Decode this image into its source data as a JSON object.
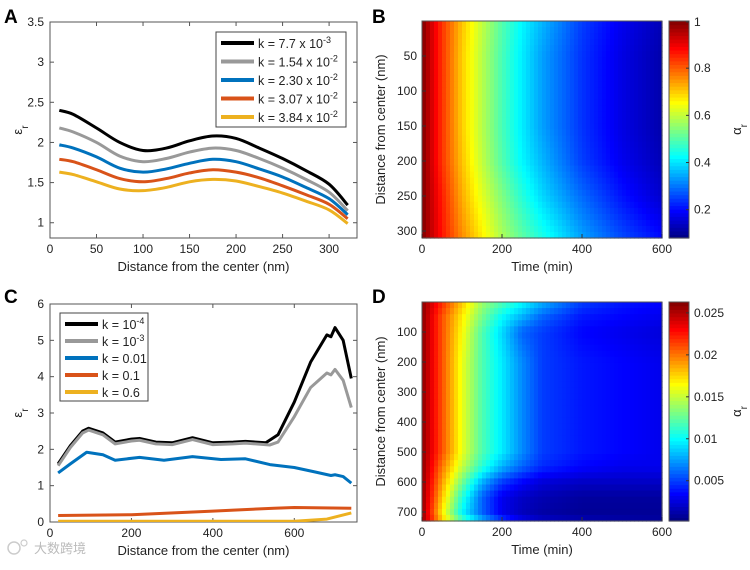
{
  "watermark": "大数跨境",
  "chart_data": [
    {
      "panel": "A",
      "type": "line",
      "xlabel": "Distance from the center (nm)",
      "ylabel": "ε",
      "ylabel_sub": "r",
      "xlim": [
        0,
        330
      ],
      "ylim": [
        0.81,
        3.5
      ],
      "xticks": [
        0,
        50,
        100,
        150,
        200,
        250,
        300
      ],
      "yticks": [
        1,
        1.5,
        2,
        2.5,
        3,
        3.5
      ],
      "legend_position": "top-right",
      "x": [
        10,
        25,
        50,
        75,
        100,
        125,
        150,
        175,
        200,
        225,
        250,
        275,
        300,
        320
      ],
      "series": [
        {
          "name": "k = 7.7 x 10",
          "exp": "-3",
          "color": "#000000",
          "values": [
            2.4,
            2.35,
            2.18,
            2.0,
            1.9,
            1.93,
            2.02,
            2.08,
            2.05,
            1.93,
            1.8,
            1.65,
            1.48,
            1.22
          ]
        },
        {
          "name": "k = 1.54 x 10",
          "exp": "-2",
          "color": "#999999",
          "values": [
            2.18,
            2.13,
            2.0,
            1.83,
            1.76,
            1.8,
            1.88,
            1.93,
            1.9,
            1.8,
            1.68,
            1.54,
            1.38,
            1.15
          ]
        },
        {
          "name": "k = 2.30 x 10",
          "exp": "-2",
          "color": "#0072BD",
          "values": [
            1.97,
            1.93,
            1.82,
            1.68,
            1.63,
            1.67,
            1.74,
            1.79,
            1.76,
            1.67,
            1.57,
            1.44,
            1.3,
            1.1
          ]
        },
        {
          "name": "k = 3.07 x 10",
          "exp": "-2",
          "color": "#D95319",
          "values": [
            1.79,
            1.76,
            1.66,
            1.55,
            1.51,
            1.55,
            1.62,
            1.66,
            1.63,
            1.56,
            1.46,
            1.35,
            1.23,
            1.05
          ]
        },
        {
          "name": "k = 3.84 x 10",
          "exp": "-2",
          "color": "#EDB120",
          "values": [
            1.63,
            1.6,
            1.51,
            1.42,
            1.4,
            1.44,
            1.51,
            1.54,
            1.52,
            1.45,
            1.37,
            1.27,
            1.16,
            0.99
          ]
        }
      ]
    },
    {
      "panel": "B",
      "type": "heatmap",
      "xlabel": "Time (min)",
      "ylabel": "Distance from center (nm)",
      "colorbar_label": "α",
      "colorbar_sub": "r",
      "xlim": [
        0,
        600
      ],
      "ylim": [
        0,
        310
      ],
      "clim": [
        0.08,
        1
      ],
      "xticks": [
        0,
        200,
        400,
        600
      ],
      "yticks": [
        50,
        100,
        150,
        200,
        250,
        300
      ],
      "cticks": [
        0.2,
        0.4,
        0.6,
        0.8,
        1
      ],
      "ctick_labels": [
        "0.2",
        "0.4",
        "0.6",
        "0.8",
        "1"
      ],
      "x": [
        0,
        50,
        100,
        150,
        200,
        250,
        300,
        400,
        500,
        600
      ],
      "y": [
        0,
        50,
        100,
        150,
        200,
        250,
        310
      ],
      "z": [
        [
          1,
          0.84,
          0.71,
          0.6,
          0.5,
          0.42,
          0.36,
          0.25,
          0.18,
          0.13
        ],
        [
          1,
          0.84,
          0.7,
          0.59,
          0.49,
          0.41,
          0.34,
          0.24,
          0.17,
          0.12
        ],
        [
          1,
          0.84,
          0.7,
          0.59,
          0.49,
          0.41,
          0.34,
          0.24,
          0.17,
          0.12
        ],
        [
          1,
          0.84,
          0.7,
          0.59,
          0.49,
          0.41,
          0.34,
          0.24,
          0.17,
          0.12
        ],
        [
          1,
          0.84,
          0.71,
          0.6,
          0.5,
          0.42,
          0.36,
          0.25,
          0.18,
          0.13
        ],
        [
          1,
          0.86,
          0.73,
          0.63,
          0.54,
          0.46,
          0.39,
          0.29,
          0.21,
          0.15
        ],
        [
          1,
          0.87,
          0.76,
          0.67,
          0.58,
          0.51,
          0.45,
          0.34,
          0.26,
          0.2
        ]
      ]
    },
    {
      "panel": "C",
      "type": "line",
      "xlabel": "Distance from the center (nm)",
      "ylabel": "ε",
      "ylabel_sub": "r",
      "xlim": [
        0,
        754
      ],
      "ylim": [
        0,
        6
      ],
      "xticks": [
        0,
        200,
        400,
        600
      ],
      "yticks": [
        0,
        1,
        2,
        3,
        4,
        5,
        6
      ],
      "legend_position": "top-left",
      "series": [
        {
          "name": "k = 10",
          "exp": "-4",
          "color": "#000000",
          "x": [
            20,
            50,
            80,
            95,
            130,
            160,
            200,
            220,
            260,
            300,
            350,
            400,
            450,
            480,
            530,
            560,
            600,
            640,
            680,
            690,
            700,
            720,
            740
          ],
          "values": [
            1.6,
            2.1,
            2.5,
            2.58,
            2.45,
            2.2,
            2.28,
            2.3,
            2.2,
            2.18,
            2.32,
            2.18,
            2.2,
            2.22,
            2.18,
            2.4,
            3.3,
            4.4,
            5.15,
            5.1,
            5.35,
            5.0,
            3.95
          ]
        },
        {
          "name": "k = 10",
          "exp": "-3",
          "color": "#999999",
          "x": [
            20,
            50,
            80,
            95,
            130,
            160,
            200,
            220,
            260,
            300,
            350,
            400,
            450,
            480,
            540,
            560,
            600,
            640,
            680,
            690,
            700,
            720,
            740
          ],
          "values": [
            1.55,
            2.05,
            2.45,
            2.53,
            2.4,
            2.15,
            2.23,
            2.25,
            2.15,
            2.13,
            2.27,
            2.13,
            2.15,
            2.17,
            2.12,
            2.2,
            2.9,
            3.7,
            4.1,
            4.05,
            4.2,
            3.9,
            3.15
          ]
        },
        {
          "name": "k = 0.01",
          "exp": "",
          "color": "#0072BD",
          "x": [
            20,
            50,
            90,
            130,
            160,
            220,
            280,
            350,
            420,
            480,
            540,
            600,
            650,
            690,
            700,
            720,
            740
          ],
          "values": [
            1.35,
            1.6,
            1.92,
            1.85,
            1.7,
            1.78,
            1.7,
            1.8,
            1.72,
            1.74,
            1.58,
            1.5,
            1.38,
            1.28,
            1.3,
            1.25,
            1.07
          ]
        },
        {
          "name": "k = 0.1",
          "exp": "",
          "color": "#D95319",
          "x": [
            20,
            200,
            400,
            550,
            600,
            740
          ],
          "values": [
            0.18,
            0.2,
            0.3,
            0.38,
            0.4,
            0.38
          ]
        },
        {
          "name": "k = 0.6",
          "exp": "",
          "color": "#EDB120",
          "x": [
            20,
            600,
            680,
            740
          ],
          "values": [
            0.02,
            0.02,
            0.08,
            0.25
          ]
        }
      ]
    },
    {
      "panel": "D",
      "type": "heatmap",
      "xlabel": "Time (min)",
      "ylabel": "Distance from center (nm)",
      "colorbar_label": "α",
      "colorbar_sub": "r",
      "xlim": [
        0,
        600
      ],
      "ylim": [
        0,
        730
      ],
      "clim": [
        0.0002,
        0.0263
      ],
      "xticks": [
        0,
        200,
        400,
        600
      ],
      "yticks": [
        100,
        200,
        300,
        400,
        500,
        600,
        700
      ],
      "cticks": [
        0.005,
        0.01,
        0.015,
        0.02,
        0.025
      ],
      "ctick_labels": [
        "0.005",
        "0.01",
        "0.015",
        "0.02",
        "0.025"
      ],
      "x": [
        0,
        50,
        100,
        150,
        200,
        250,
        300,
        400,
        500,
        600
      ],
      "y": [
        0,
        50,
        100,
        200,
        300,
        400,
        500,
        550,
        600,
        650,
        700,
        730
      ],
      "z": [
        [
          0.026,
          0.022,
          0.018,
          0.014,
          0.012,
          0.01,
          0.008,
          0.005,
          0.004,
          0.0035
        ],
        [
          0.026,
          0.021,
          0.017,
          0.013,
          0.01,
          0.008,
          0.006,
          0.004,
          0.0035,
          0.003
        ],
        [
          0.026,
          0.021,
          0.0165,
          0.012,
          0.009,
          0.006,
          0.005,
          0.0035,
          0.003,
          0.0025
        ],
        [
          0.026,
          0.021,
          0.016,
          0.012,
          0.0095,
          0.007,
          0.005,
          0.004,
          0.0035,
          0.003
        ],
        [
          0.026,
          0.021,
          0.016,
          0.012,
          0.0095,
          0.007,
          0.005,
          0.004,
          0.0035,
          0.003
        ],
        [
          0.026,
          0.021,
          0.016,
          0.012,
          0.0095,
          0.007,
          0.005,
          0.004,
          0.0035,
          0.003
        ],
        [
          0.026,
          0.021,
          0.016,
          0.012,
          0.0095,
          0.007,
          0.005,
          0.004,
          0.0035,
          0.003
        ],
        [
          0.026,
          0.02,
          0.015,
          0.011,
          0.008,
          0.006,
          0.0045,
          0.0035,
          0.003,
          0.003
        ],
        [
          0.026,
          0.019,
          0.013,
          0.008,
          0.005,
          0.0035,
          0.0025,
          0.002,
          0.002,
          0.002
        ],
        [
          0.026,
          0.018,
          0.011,
          0.006,
          0.003,
          0.002,
          0.0015,
          0.001,
          0.001,
          0.001
        ],
        [
          0.026,
          0.017,
          0.01,
          0.006,
          0.003,
          0.0018,
          0.0012,
          0.0008,
          0.0008,
          0.0008
        ],
        [
          0.026,
          0.018,
          0.012,
          0.008,
          0.005,
          0.003,
          0.002,
          0.0015,
          0.0012,
          0.001
        ]
      ]
    }
  ]
}
